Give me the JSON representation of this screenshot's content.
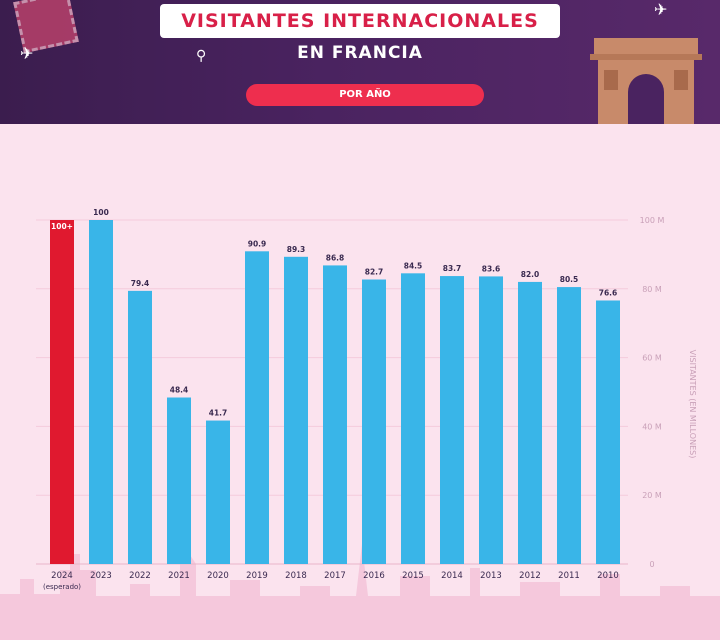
{
  "header": {
    "title": "VISITANTES INTERNACIONALES",
    "subtitle": "EN FRANCIA",
    "pill": "POR AÑO"
  },
  "colors": {
    "bar": "#39b5e8",
    "highlight": "#e0192f",
    "banner": "#4a2360",
    "background": "#fbe3ee",
    "text": "#3a2a50"
  },
  "icons": [
    "plane-icon",
    "pin-icon",
    "stamp-icon",
    "arc-de-triomphe-icon"
  ],
  "chart_data": {
    "type": "bar",
    "ylabel": "VISITANTES (EN MILLONES)",
    "ylim": [
      0,
      100
    ],
    "yticks": [
      "0",
      "20 M",
      "40 M",
      "60 M",
      "80 M",
      "100 M"
    ],
    "ytick_values": [
      0,
      20,
      40,
      60,
      80,
      100
    ],
    "grid": true,
    "categories": [
      "2024",
      "2023",
      "2022",
      "2021",
      "2020",
      "2019",
      "2018",
      "2017",
      "2016",
      "2015",
      "2014",
      "2013",
      "2012",
      "2011",
      "2010"
    ],
    "category_note": "(esperado)",
    "values": [
      100,
      100,
      79.4,
      48.4,
      41.7,
      90.9,
      89.3,
      86.8,
      82.7,
      84.5,
      83.7,
      83.6,
      82.0,
      80.5,
      76.6
    ],
    "labels": [
      "100+",
      "100",
      "79.4",
      "48.4",
      "41.7",
      "90.9",
      "89.3",
      "86.8",
      "82.7",
      "84.5",
      "83.7",
      "83.6",
      "82.0",
      "80.5",
      "76.6"
    ],
    "highlight_index": 0
  }
}
